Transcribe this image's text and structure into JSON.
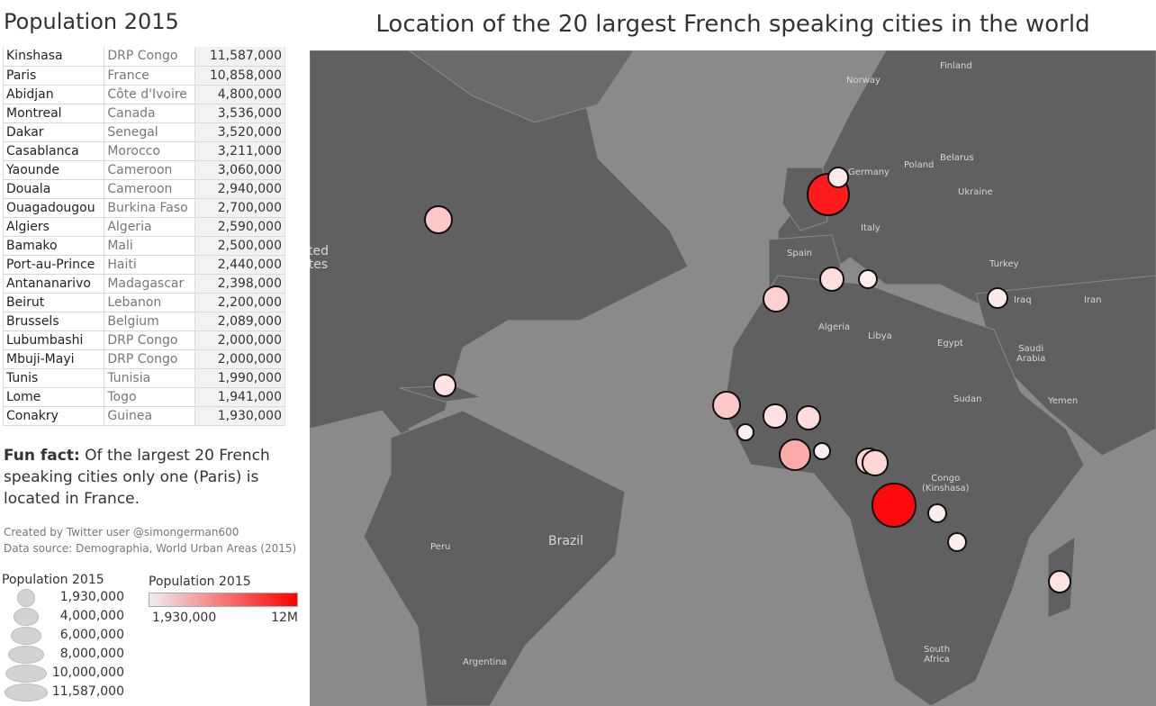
{
  "left_title": "Population 2015",
  "cities": [
    {
      "city": "Kinshasa",
      "country": "DRP Congo",
      "population": "11,587,000",
      "value": 11587000
    },
    {
      "city": "Paris",
      "country": "France",
      "population": "10,858,000",
      "value": 10858000
    },
    {
      "city": "Abidjan",
      "country": "Côte d'Ivoire",
      "population": "4,800,000",
      "value": 4800000
    },
    {
      "city": "Montreal",
      "country": "Canada",
      "population": "3,536,000",
      "value": 3536000
    },
    {
      "city": "Dakar",
      "country": "Senegal",
      "population": "3,520,000",
      "value": 3520000
    },
    {
      "city": "Casablanca",
      "country": "Morocco",
      "population": "3,211,000",
      "value": 3211000
    },
    {
      "city": "Yaounde",
      "country": "Cameroon",
      "population": "3,060,000",
      "value": 3060000
    },
    {
      "city": "Douala",
      "country": "Cameroon",
      "population": "2,940,000",
      "value": 2940000
    },
    {
      "city": "Ouagadougou",
      "country": "Burkina Faso",
      "population": "2,700,000",
      "value": 2700000
    },
    {
      "city": "Algiers",
      "country": "Algeria",
      "population": "2,590,000",
      "value": 2590000
    },
    {
      "city": "Bamako",
      "country": "Mali",
      "population": "2,500,000",
      "value": 2500000
    },
    {
      "city": "Port-au-Prince",
      "country": "Haiti",
      "population": "2,440,000",
      "value": 2440000
    },
    {
      "city": "Antananarivo",
      "country": "Madagascar",
      "population": "2,398,000",
      "value": 2398000
    },
    {
      "city": "Beirut",
      "country": "Lebanon",
      "population": "2,200,000",
      "value": 2200000
    },
    {
      "city": "Brussels",
      "country": "Belgium",
      "population": "2,089,000",
      "value": 2089000
    },
    {
      "city": "Lubumbashi",
      "country": "DRP Congo",
      "population": "2,000,000",
      "value": 2000000
    },
    {
      "city": "Mbuji-Mayi",
      "country": "DRP Congo",
      "population": "2,000,000",
      "value": 2000000
    },
    {
      "city": "Tunis",
      "country": "Tunisia",
      "population": "1,990,000",
      "value": 1990000
    },
    {
      "city": "Lome",
      "country": "Togo",
      "population": "1,941,000",
      "value": 1941000
    },
    {
      "city": "Conakry",
      "country": "Guinea",
      "population": "1,930,000",
      "value": 1930000
    }
  ],
  "fun_fact": {
    "bold": "Fun fact:",
    "text": " Of the largest 20 French speaking cities only one (Paris) is located in France."
  },
  "credit": "Created by Twitter user @simongerman600",
  "source": "Data source: Demographia, World Urban Areas (2015)",
  "size_legend": {
    "title": "Population 2015",
    "items": [
      "1,930,000",
      "4,000,000",
      "6,000,000",
      "8,000,000",
      "10,000,000",
      "11,587,000"
    ]
  },
  "color_legend": {
    "title": "Population 2015",
    "min_label": "1,930,000",
    "max_label": "12M",
    "min_color": "#eeeeee",
    "max_color": "#ff0000"
  },
  "map": {
    "title": "Location of the 20 largest French speaking cities in the world",
    "ocean_color": "#8a8a8a",
    "land_color": "#606060",
    "labels": [
      "Finland",
      "Norway",
      "Germany",
      "Poland",
      "Belarus",
      "Ukraine",
      "Italy",
      "Spain",
      "Turkey",
      "Iraq",
      "Iran",
      "Algeria",
      "Libya",
      "Egypt",
      "Saudi\nArabia",
      "Sudan",
      "Yemen",
      "Congo\n(Kinshasa)",
      "Brazil",
      "Peru",
      "Argentina",
      "South\nAfrica",
      "ted\ntes"
    ]
  }
}
